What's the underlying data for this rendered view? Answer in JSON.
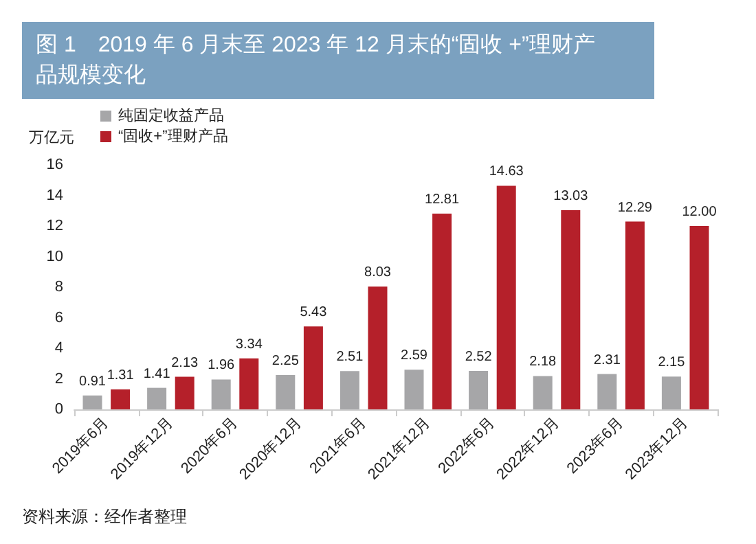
{
  "chart_data": {
    "type": "bar",
    "title": "图 1　2019 年 6 月末至 2023 年 12 月末的“固收 +”理财产品规模变化",
    "ylabel": "万亿元",
    "categories": [
      "2019年6月",
      "2019年12月",
      "2020年6月",
      "2020年12月",
      "2021年6月",
      "2021年12月",
      "2022年6月",
      "2022年12月",
      "2023年6月",
      "2023年12月"
    ],
    "series": [
      {
        "name": "纯固定收益产品",
        "color": "#a6a6a8",
        "values": [
          0.91,
          1.41,
          1.96,
          2.25,
          2.51,
          2.59,
          2.52,
          2.18,
          2.31,
          2.15
        ],
        "value_labels": [
          "0.91",
          "1.41",
          "1.96",
          "2.25",
          "2.51",
          "2.59",
          "2.52",
          "2.18",
          "2.31",
          "2.15"
        ]
      },
      {
        "name": "“固收+”理财产品",
        "color": "#b5202a",
        "values": [
          1.31,
          2.13,
          3.34,
          5.43,
          8.03,
          12.81,
          14.63,
          13.03,
          12.29,
          12.0
        ],
        "value_labels": [
          "1.31",
          "2.13",
          "3.34",
          "5.43",
          "8.03",
          "12.81",
          "14.63",
          "13.03",
          "12.29",
          "12.00"
        ]
      }
    ],
    "ylim": [
      0,
      16
    ],
    "yticks": [
      0,
      2,
      4,
      6,
      8,
      10,
      12,
      14,
      16
    ],
    "grid": false,
    "legend": "top left",
    "annotations": [
      "资料来源：经作者整理"
    ]
  }
}
